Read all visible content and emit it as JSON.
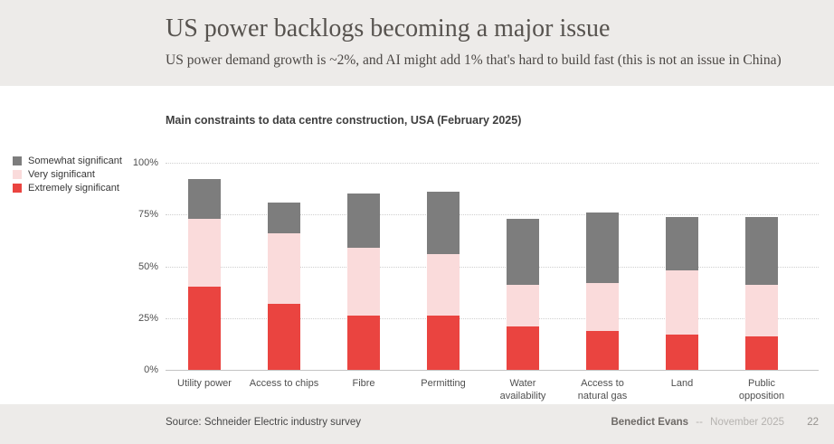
{
  "header": {
    "title": "US power backlogs becoming a major issue",
    "subtitle": "US power demand growth is ~2%, and AI might add 1% that's hard to build fast (this is not an issue in China)"
  },
  "chart": {
    "title": "Main constraints to data centre construction, USA (February 2025)"
  },
  "chart_data": {
    "type": "bar",
    "stacked": true,
    "title": "Main constraints to data centre construction, USA (February 2025)",
    "categories": [
      "Utility power",
      "Access to chips",
      "Fibre",
      "Permitting",
      "Water availability",
      "Access to natural gas",
      "Land",
      "Public opposition"
    ],
    "category_lines": [
      [
        "Utility power"
      ],
      [
        "Access to chips"
      ],
      [
        "Fibre"
      ],
      [
        "Permitting"
      ],
      [
        "Water",
        "availability"
      ],
      [
        "Access to",
        "natural gas"
      ],
      [
        "Land"
      ],
      [
        "Public",
        "opposition"
      ]
    ],
    "series": [
      {
        "name": "Extremely significant",
        "color": "#ea4440",
        "values": [
          40,
          32,
          26,
          26,
          21,
          19,
          17,
          16
        ]
      },
      {
        "name": "Very significant",
        "color": "#fadbdb",
        "values": [
          33,
          34,
          33,
          30,
          20,
          23,
          31,
          25
        ]
      },
      {
        "name": "Somewhat significant",
        "color": "#7d7d7d",
        "values": [
          19,
          15,
          26,
          30,
          32,
          34,
          26,
          33
        ]
      }
    ],
    "totals": [
      92,
      81,
      85,
      86,
      73,
      76,
      74,
      74
    ],
    "xlabel": "",
    "ylabel": "",
    "ylim": [
      0,
      100
    ],
    "y_ticks": [
      "0%",
      "25%",
      "50%",
      "75%",
      "100%"
    ],
    "grid": "horizontal-dotted",
    "legend_position": "left",
    "legend_order": [
      "Somewhat significant",
      "Very significant",
      "Extremely significant"
    ]
  },
  "footer": {
    "source": "Source: Schneider Electric industry survey",
    "author": "Benedict Evans",
    "separator": "--",
    "date": "November 2025",
    "page": "22"
  }
}
